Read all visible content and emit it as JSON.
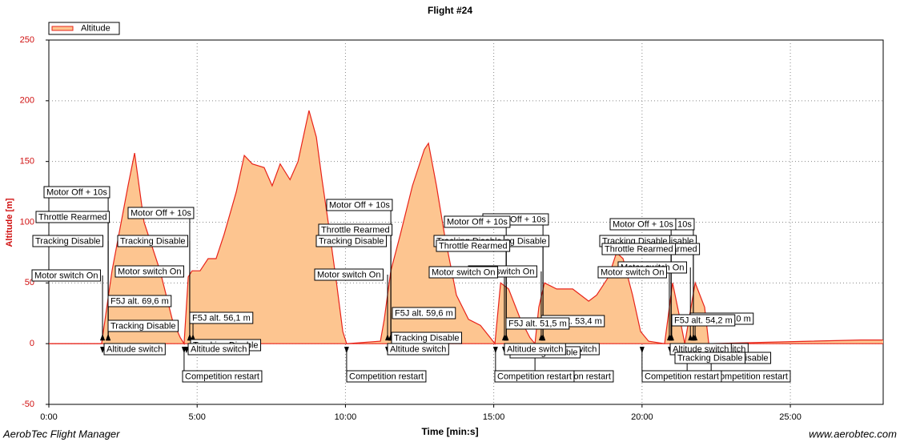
{
  "chart_data": {
    "type": "area",
    "title": "Flight #24",
    "x_label": "Time [min:s]",
    "y_label": "Altitude [m]",
    "footer_left": "AerobTec Flight Manager",
    "footer_right": "www.aerobtec.com",
    "grid": true,
    "legend": "top-left",
    "xlim": [
      0,
      28.13
    ],
    "ylim": [
      -50,
      250
    ],
    "xticks": [
      {
        "value": 0,
        "label": "0:00"
      },
      {
        "value": 5,
        "label": "5:00"
      },
      {
        "value": 10,
        "label": "10:00"
      },
      {
        "value": 15,
        "label": "15:00"
      },
      {
        "value": 20,
        "label": "20:00"
      },
      {
        "value": 25,
        "label": "25:00"
      }
    ],
    "yticks": [
      -50,
      0,
      50,
      100,
      150,
      200,
      250
    ],
    "x": [
      0,
      1.75,
      1.78,
      2.13,
      2.67,
      2.89,
      3.21,
      3.75,
      4.16,
      4.43,
      4.56,
      4.7,
      4.83,
      5.1,
      5.37,
      5.64,
      5.91,
      6.32,
      6.59,
      6.86,
      7.26,
      7.53,
      7.8,
      8.13,
      8.4,
      8.77,
      9.02,
      9.21,
      9.42,
      9.7,
      9.91,
      10.04,
      11.18,
      11.31,
      11.53,
      11.85,
      12.26,
      12.66,
      12.8,
      13.07,
      13.34,
      13.74,
      14.15,
      14.55,
      14.88,
      15.04,
      15.23,
      15.5,
      15.9,
      16.22,
      16.39,
      16.52,
      16.71,
      17.12,
      17.66,
      18.2,
      18.47,
      18.87,
      19.14,
      19.36,
      19.68,
      19.95,
      20.22,
      20.76,
      21.03,
      21.24,
      21.44,
      21.79,
      22.11,
      22.25,
      24,
      27.38,
      28.13
    ],
    "series": [
      {
        "name": "Altitude",
        "color": "#e8231a",
        "fill": "#fdc590",
        "values": [
          0,
          0,
          0,
          60,
          130,
          157,
          100,
          60,
          20,
          5,
          0,
          55,
          60,
          60,
          70,
          70,
          90,
          125,
          155,
          148,
          145,
          130,
          148,
          135,
          150,
          192,
          170,
          135,
          100,
          50,
          10,
          0,
          2,
          20,
          60,
          90,
          130,
          160,
          165,
          130,
          90,
          40,
          20,
          15,
          5,
          0,
          50,
          45,
          20,
          5,
          0,
          30,
          50,
          45,
          45,
          35,
          40,
          55,
          75,
          70,
          40,
          10,
          2,
          0,
          50,
          25,
          0,
          50,
          30,
          0,
          1,
          3,
          3
        ]
      }
    ],
    "annotations": [
      {
        "text": "Tracking Disable",
        "x": 4.83
      },
      {
        "text": "Motor Off + 10s",
        "x": 16.66
      },
      {
        "text": "Tracking Disable",
        "x": 16.66
      },
      {
        "text": "Motor switch On",
        "x": 16.6
      },
      {
        "text": "F5J alt. 53,4 m",
        "x": 16.66
      },
      {
        "text": "Altitude switch",
        "x": 16.6
      },
      {
        "text": "Tracking Disable",
        "x": 16.44
      },
      {
        "text": "Competition restart",
        "x": 16.39
      },
      {
        "text": "Motor Off + 10s",
        "x": 21.73
      },
      {
        "text": "Tracking Disable",
        "x": 21.73
      },
      {
        "text": "Throttle Rearmed",
        "x": 21.73
      },
      {
        "text": "Motor switch On",
        "x": 21.63
      },
      {
        "text": "F5J alt. 54,0 m",
        "x": 21.79
      },
      {
        "text": "Altitude switch",
        "x": 21.57
      },
      {
        "text": "Tracking Disable",
        "x": 22.33
      },
      {
        "text": "Competition restart",
        "x": 21.52
      },
      {
        "text": "Competition restart",
        "x": 22.33
      },
      {
        "text": "Motor Off + 10s",
        "x": 2.0
      },
      {
        "text": "Throttle Rearmed",
        "x": 2.0
      },
      {
        "text": "Tracking Disable",
        "x": 2.0
      },
      {
        "text": "Motor switch On",
        "x": 1.81
      },
      {
        "text": "Altitude switch",
        "x": 1.81
      },
      {
        "text": "F5J alt. 69,6 m",
        "x": 2.0
      },
      {
        "text": "Tracking Disable",
        "x": 1.81
      },
      {
        "text": "Motor Off + 10s",
        "x": 4.75
      },
      {
        "text": "Tracking Disable",
        "x": 4.75
      },
      {
        "text": "Motor switch On",
        "x": 4.75
      },
      {
        "text": "F5J alt. 56,1 m",
        "x": 4.86
      },
      {
        "text": "Altitude switch",
        "x": 4.64
      },
      {
        "text": "Competition restart",
        "x": 4.56
      },
      {
        "text": "Motor Off + 10s",
        "x": 11.53
      },
      {
        "text": "Throttle Rearmed",
        "x": 11.53
      },
      {
        "text": "Tracking Disable",
        "x": 11.53
      },
      {
        "text": "Motor switch On",
        "x": 11.42
      },
      {
        "text": "F5J alt. 59,6 m",
        "x": 11.53
      },
      {
        "text": "Tracking Disable",
        "x": 11.53
      },
      {
        "text": "Altitude switch",
        "x": 11.42
      },
      {
        "text": "Competition restart",
        "x": 10.04
      },
      {
        "text": "Motor Off + 10s",
        "x": 15.42
      },
      {
        "text": "Tracking Disable",
        "x": 15.42
      },
      {
        "text": "Throttle Rearmed",
        "x": 15.42
      },
      {
        "text": "Motor switch On",
        "x": 15.36
      },
      {
        "text": "F5J alt. 51,5 m",
        "x": 15.42
      },
      {
        "text": "Altitude switch",
        "x": 15.36
      },
      {
        "text": "Competition restart",
        "x": 15.06
      },
      {
        "text": "Motor Off + 10s",
        "x": 20.98
      },
      {
        "text": "Tracking Disable",
        "x": 20.98
      },
      {
        "text": "Throttle Rearmed",
        "x": 20.98
      },
      {
        "text": "Motor switch On",
        "x": 20.92
      },
      {
        "text": "F5J alt. 54,2 m",
        "x": 21.0
      },
      {
        "text": "Altitude switch",
        "x": 20.95
      },
      {
        "text": "Tracking Disable",
        "x": 21.11
      },
      {
        "text": "Competition restart",
        "x": 20.0
      }
    ]
  }
}
